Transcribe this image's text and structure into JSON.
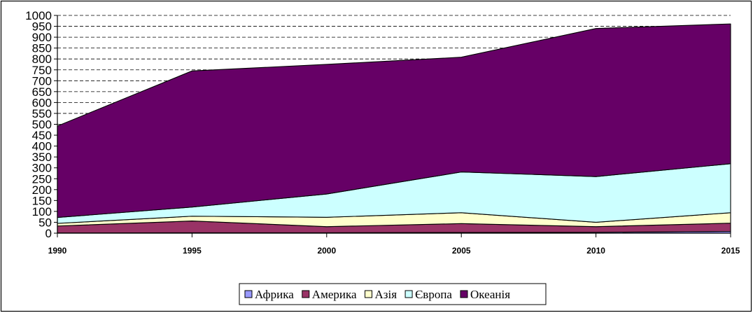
{
  "chart_data": {
    "type": "area",
    "stacked": true,
    "x": [
      "1990",
      "1995",
      "2000",
      "2005",
      "2010",
      "2015"
    ],
    "series": [
      {
        "name": "Африка",
        "color": "#9999ff",
        "values": [
          1,
          2,
          2,
          3,
          4,
          8
        ]
      },
      {
        "name": "Америка",
        "color": "#993366",
        "values": [
          32,
          54,
          28,
          41,
          26,
          38
        ]
      },
      {
        "name": "Азія",
        "color": "#ffffcc",
        "values": [
          12,
          22,
          43,
          50,
          20,
          48
        ]
      },
      {
        "name": "Європа",
        "color": "#ccffff",
        "values": [
          27,
          42,
          107,
          187,
          210,
          225
        ]
      },
      {
        "name": "Океанія",
        "color": "#660066",
        "values": [
          420,
          625,
          595,
          527,
          680,
          642
        ]
      }
    ],
    "ylim": [
      0,
      1000
    ],
    "yticks": [
      0,
      50,
      100,
      150,
      200,
      250,
      300,
      350,
      400,
      450,
      500,
      550,
      600,
      650,
      700,
      750,
      800,
      850,
      900,
      950,
      1000
    ],
    "grid": "horizontal-dashed",
    "legend_position": "bottom",
    "title": "",
    "xlabel": "",
    "ylabel": ""
  }
}
